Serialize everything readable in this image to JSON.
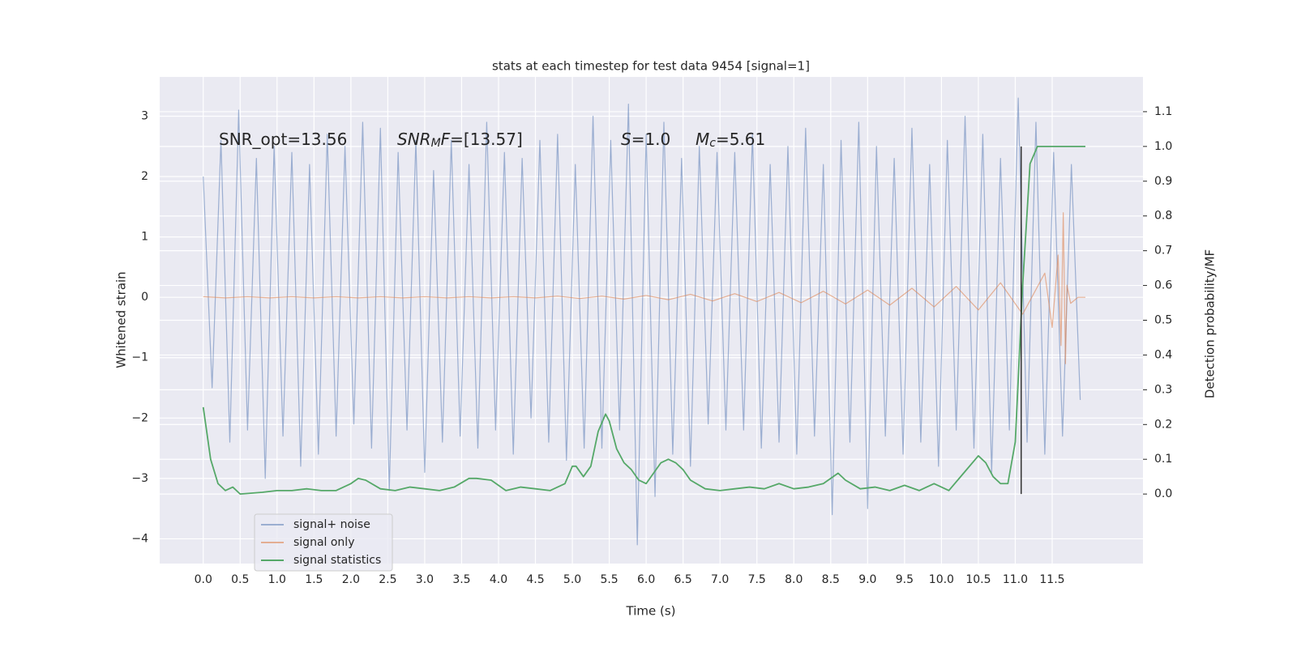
{
  "chart_data": {
    "type": "line",
    "title": "stats at each timestep for test data 9454 [signal=1]",
    "x_label": "Time (s)",
    "y_label": "Whitened strain",
    "y2_label": "Detection probability/MF",
    "xlim": [
      -0.59,
      12.73
    ],
    "ylim": [
      -4.41,
      3.65
    ],
    "y2lim": [
      -0.2,
      1.2
    ],
    "grid": true,
    "legend": "lower left",
    "xticks": [
      {
        "value": 0,
        "label": "0.0"
      },
      0.5,
      {
        "value": 1,
        "label": "1.0"
      },
      1.5,
      {
        "value": 2,
        "label": "2.0"
      },
      2.5,
      {
        "value": 3,
        "label": "3.0"
      },
      3.5,
      {
        "value": 4,
        "label": "4.0"
      },
      4.5,
      {
        "value": 5,
        "label": "5.0"
      },
      5.5,
      {
        "value": 6,
        "label": "6.0"
      },
      6.5,
      {
        "value": 7,
        "label": "7.0"
      },
      7.5,
      {
        "value": 8,
        "label": "8.0"
      },
      8.5,
      {
        "value": 9,
        "label": "9.0"
      },
      9.5,
      {
        "value": 10,
        "label": "10.0"
      },
      10.5,
      {
        "value": 11,
        "label": "11.0"
      },
      11.5
    ],
    "yticks": [
      {
        "value": -4,
        "label": "−4"
      },
      {
        "value": -3,
        "label": "−3"
      },
      {
        "value": -2,
        "label": "−2"
      },
      {
        "value": -1,
        "label": "−1"
      },
      0,
      1,
      2,
      3
    ],
    "y2ticks": [
      {
        "value": 0,
        "label": "0.0"
      },
      0.1,
      0.2,
      0.3,
      0.4,
      0.5,
      0.6,
      0.7,
      0.8,
      0.9,
      {
        "value": 1,
        "label": "1.0"
      },
      1.1
    ],
    "series": [
      {
        "name": "signal+ noise",
        "color": "#4c72b0",
        "x": [
          0,
          0.12,
          0.24,
          0.36,
          0.48,
          0.6,
          0.72,
          0.84,
          0.96,
          1.08,
          1.2,
          1.32,
          1.44,
          1.56,
          1.68,
          1.8,
          1.92,
          2.04,
          2.16,
          2.28,
          2.4,
          2.52,
          2.64,
          2.76,
          2.88,
          3,
          3.12,
          3.24,
          3.36,
          3.48,
          3.6,
          3.72,
          3.84,
          3.96,
          4.08,
          4.2,
          4.32,
          4.44,
          4.56,
          4.68,
          4.8,
          4.92,
          5.04,
          5.16,
          5.28,
          5.4,
          5.52,
          5.64,
          5.76,
          5.88,
          6,
          6.12,
          6.24,
          6.36,
          6.48,
          6.6,
          6.72,
          6.84,
          6.96,
          7.08,
          7.2,
          7.32,
          7.44,
          7.56,
          7.68,
          7.8,
          7.92,
          8.04,
          8.16,
          8.28,
          8.4,
          8.52,
          8.64,
          8.76,
          8.88,
          9,
          9.12,
          9.24,
          9.36,
          9.48,
          9.6,
          9.72,
          9.84,
          9.96,
          10.08,
          10.2,
          10.32,
          10.44,
          10.56,
          10.68,
          10.8,
          10.92,
          11.04,
          11.16,
          11.28,
          11.4,
          11.52,
          11.64,
          11.76,
          11.88
        ],
        "values": [
          2.0,
          -1.5,
          2.6,
          -2.4,
          3.1,
          -2.2,
          2.3,
          -3.0,
          2.5,
          -2.3,
          2.4,
          -2.8,
          2.2,
          -2.6,
          2.7,
          -2.3,
          2.5,
          -2.1,
          2.9,
          -2.5,
          2.8,
          -3.2,
          2.4,
          -2.2,
          2.6,
          -2.9,
          2.1,
          -2.4,
          2.6,
          -2.3,
          2.2,
          -2.5,
          2.9,
          -2.2,
          2.4,
          -2.6,
          2.3,
          -2.0,
          2.6,
          -2.4,
          2.7,
          -2.7,
          2.2,
          -2.5,
          3.0,
          -2.5,
          2.6,
          -2.2,
          3.2,
          -4.1,
          2.7,
          -3.3,
          2.9,
          -2.6,
          2.3,
          -2.8,
          2.5,
          -2.1,
          2.4,
          -2.2,
          2.4,
          -2.2,
          2.7,
          -2.5,
          2.2,
          -2.4,
          2.5,
          -2.6,
          2.8,
          -2.3,
          2.2,
          -3.6,
          2.6,
          -2.4,
          2.9,
          -3.5,
          2.5,
          -2.3,
          2.3,
          -2.6,
          2.8,
          -2.4,
          2.2,
          -2.8,
          2.6,
          -2.2,
          3.0,
          -2.5,
          2.7,
          -2.9,
          2.3,
          -2.2,
          3.3,
          -2.4,
          2.9,
          -2.6,
          2.4,
          -2.3,
          2.2,
          -1.7
        ]
      },
      {
        "name": "signal only",
        "color": "#dd8452",
        "x": [
          0,
          0.3,
          0.6,
          0.9,
          1.2,
          1.5,
          1.8,
          2.1,
          2.4,
          2.7,
          3,
          3.3,
          3.6,
          3.9,
          4.2,
          4.5,
          4.8,
          5.1,
          5.4,
          5.7,
          6,
          6.3,
          6.6,
          6.9,
          7.2,
          7.5,
          7.8,
          8.1,
          8.4,
          8.7,
          9,
          9.3,
          9.6,
          9.9,
          10.2,
          10.5,
          10.8,
          11.1,
          11.4,
          11.5,
          11.58,
          11.62,
          11.65,
          11.68,
          11.7,
          11.75,
          11.85,
          11.95
        ],
        "values": [
          0.01,
          -0.01,
          0.01,
          -0.01,
          0.01,
          -0.01,
          0.01,
          -0.01,
          0.01,
          -0.01,
          0.01,
          -0.01,
          0.01,
          -0.01,
          0.01,
          -0.01,
          0.02,
          -0.02,
          0.02,
          -0.03,
          0.03,
          -0.04,
          0.05,
          -0.06,
          0.06,
          -0.07,
          0.08,
          -0.09,
          0.1,
          -0.11,
          0.12,
          -0.13,
          0.15,
          -0.16,
          0.18,
          -0.21,
          0.24,
          -0.28,
          0.4,
          -0.5,
          0.7,
          -0.8,
          1.4,
          -1.1,
          0.2,
          -0.1,
          0,
          0
        ]
      },
      {
        "name": "signal statistics",
        "color": "#55a868",
        "axis": "y2",
        "x": [
          0,
          0.1,
          0.2,
          0.3,
          0.4,
          0.5,
          0.8,
          1.0,
          1.2,
          1.4,
          1.6,
          1.8,
          2.0,
          2.1,
          2.2,
          2.4,
          2.6,
          2.8,
          3.0,
          3.2,
          3.4,
          3.6,
          3.7,
          3.9,
          4.1,
          4.3,
          4.5,
          4.7,
          4.9,
          5.0,
          5.05,
          5.15,
          5.25,
          5.35,
          5.45,
          5.5,
          5.6,
          5.7,
          5.8,
          5.9,
          6.0,
          6.1,
          6.2,
          6.3,
          6.4,
          6.5,
          6.6,
          6.8,
          7.0,
          7.2,
          7.4,
          7.6,
          7.8,
          8.0,
          8.2,
          8.4,
          8.6,
          8.7,
          8.9,
          9.1,
          9.3,
          9.5,
          9.7,
          9.9,
          10.1,
          10.3,
          10.5,
          10.6,
          10.7,
          10.8,
          10.9,
          11.0,
          11.1,
          11.2,
          11.3,
          11.5,
          11.7,
          11.9,
          11.95
        ],
        "values": [
          0.25,
          0.1,
          0.03,
          0.01,
          0.02,
          0.0,
          0.005,
          0.01,
          0.01,
          0.015,
          0.01,
          0.01,
          0.03,
          0.045,
          0.04,
          0.015,
          0.01,
          0.02,
          0.015,
          0.01,
          0.02,
          0.045,
          0.045,
          0.04,
          0.01,
          0.02,
          0.015,
          0.01,
          0.03,
          0.08,
          0.08,
          0.05,
          0.08,
          0.18,
          0.23,
          0.21,
          0.13,
          0.09,
          0.07,
          0.04,
          0.03,
          0.06,
          0.09,
          0.1,
          0.09,
          0.07,
          0.04,
          0.015,
          0.01,
          0.015,
          0.02,
          0.015,
          0.03,
          0.015,
          0.02,
          0.03,
          0.06,
          0.04,
          0.015,
          0.02,
          0.01,
          0.025,
          0.01,
          0.03,
          0.01,
          0.06,
          0.11,
          0.09,
          0.05,
          0.03,
          0.03,
          0.15,
          0.6,
          0.95,
          1.0,
          1.0,
          1.0,
          1.0,
          1.0
        ]
      }
    ],
    "vline": {
      "x": 11.08,
      "y2": [
        0,
        1
      ],
      "color": "#333333"
    },
    "annotations": [
      [
        [
          "SNR_opt=13.56",
          "normal"
        ]
      ],
      [
        [
          "SNR",
          "italic"
        ],
        [
          "M",
          "sub"
        ],
        [
          "F",
          "italic"
        ],
        [
          "=[13.57]",
          "normal"
        ]
      ],
      [
        [
          "S",
          "italic"
        ],
        [
          "=1.0",
          "normal"
        ]
      ],
      [
        [
          "M",
          "italic"
        ],
        [
          "c",
          "sub"
        ],
        [
          "=5.61",
          "normal"
        ]
      ]
    ]
  }
}
